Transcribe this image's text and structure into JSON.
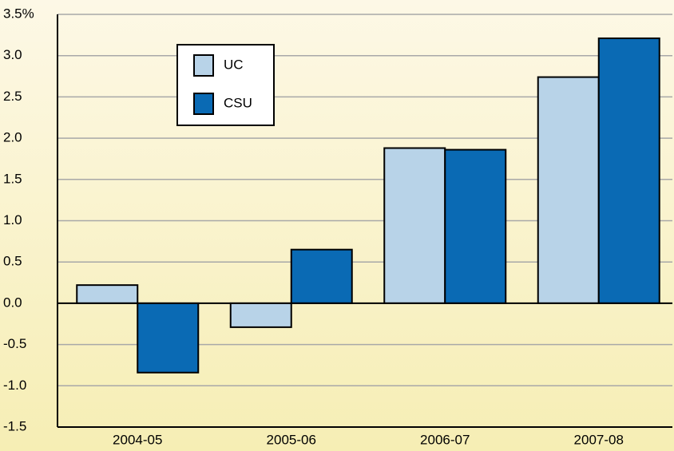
{
  "chart_data": {
    "type": "bar",
    "categories": [
      "2004-05",
      "2005-06",
      "2006-07",
      "2007-08"
    ],
    "series": [
      {
        "name": "UC",
        "color": "#b8d3e8",
        "values": [
          0.22,
          -0.29,
          1.88,
          2.74
        ]
      },
      {
        "name": "CSU",
        "color": "#0a6ab4",
        "values": [
          -0.84,
          0.65,
          1.86,
          3.21
        ]
      }
    ],
    "ylim": [
      -1.5,
      3.5
    ],
    "yticks": [
      -1.5,
      {
        "value": -1.0,
        "label": "-1.0"
      },
      -0.5,
      {
        "value": 0,
        "label": "0.0"
      },
      0.5,
      {
        "value": 1.0,
        "label": "1.0"
      },
      1.5,
      {
        "value": 2.0,
        "label": "2.0"
      },
      2.5,
      {
        "value": 3.0,
        "label": "3.0"
      },
      {
        "value": 3.5,
        "label": "3.5%"
      }
    ],
    "grid": true,
    "legend": "upper-left"
  }
}
